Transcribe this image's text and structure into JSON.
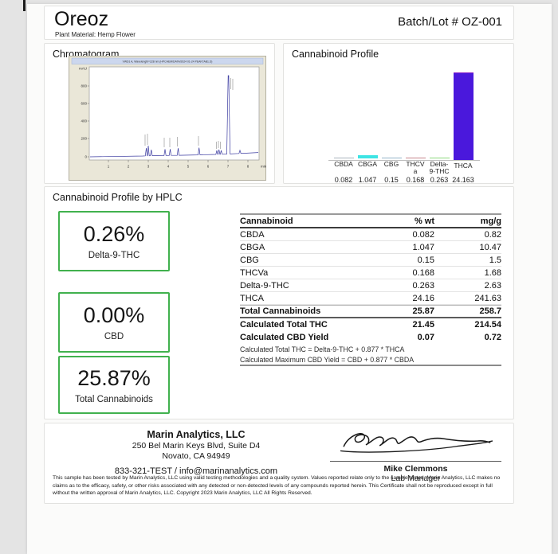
{
  "header": {
    "title": "Oreoz",
    "plant_material": "Plant Material: Hemp Flower",
    "batch": "Batch/Lot # OZ-001"
  },
  "chromatogram": {
    "title": "Chromatogram",
    "instrument_line": "VWD1 A, Wavelength=228 nm (HPCHEM/DATA/2024 01-24 PEAKTAB1.D)",
    "y_axis_label": "mAU",
    "y_ticks": [
      "800",
      "600",
      "400",
      "200",
      "0"
    ],
    "x_ticks": [
      "1",
      "2",
      "3",
      "4",
      "5",
      "6",
      "7",
      "8"
    ],
    "x_unit": "min"
  },
  "profile": {
    "title": "Cannabinoid Profile",
    "chart": {
      "ymax": 24.163,
      "items": [
        {
          "label_lines": [
            "CBDA"
          ],
          "value": 0.082,
          "value_label": "0.082",
          "color": "#aab4bd"
        },
        {
          "label_lines": [
            "CBGA"
          ],
          "value": 1.047,
          "value_label": "1.047",
          "color": "#3de4e4"
        },
        {
          "label_lines": [
            "CBG"
          ],
          "value": 0.15,
          "value_label": "0.15",
          "color": "#93b3c8"
        },
        {
          "label_lines": [
            "THCV",
            "a"
          ],
          "value": 0.168,
          "value_label": "0.168",
          "color": "#c5858c"
        },
        {
          "label_lines": [
            "Delta-",
            "9-THC"
          ],
          "value": 0.263,
          "value_label": "0.263",
          "color": "#8bd97c"
        },
        {
          "label_lines": [
            "THCA"
          ],
          "value": 24.163,
          "value_label": "24.163",
          "color": "#4a18dc",
          "edge": "#8a22c8"
        }
      ]
    }
  },
  "hplc": {
    "title": "Cannabinoid Profile by HPLC",
    "boxes": [
      {
        "value": "0.26%",
        "label": "Delta-9-THC"
      },
      {
        "value": "0.00%",
        "label": "CBD"
      },
      {
        "value": "25.87%",
        "label": "Total Cannabinoids"
      }
    ],
    "table": {
      "headers": [
        "Cannabinoid",
        "% wt",
        "mg/g"
      ],
      "rows": [
        [
          "CBDA",
          "0.082",
          "0.82"
        ],
        [
          "CBGA",
          "1.047",
          "10.47"
        ],
        [
          "CBG",
          "0.15",
          "1.5"
        ],
        [
          "THCVa",
          "0.168",
          "1.68"
        ],
        [
          "Delta-9-THC",
          "0.263",
          "2.63"
        ],
        [
          "THCA",
          "24.16",
          "241.63"
        ]
      ],
      "total_row": [
        "Total Cannabinoids",
        "25.87",
        "258.7"
      ],
      "calc_rows": [
        [
          "Calculated Total THC",
          "21.45",
          "214.54"
        ],
        [
          "Calculated CBD Yield",
          "0.07",
          "0.72"
        ]
      ],
      "notes": [
        "Calculated Total THC = Delta-9-THC + 0.877 * THCA",
        "Calculated Maximum CBD Yield = CBD + 0.877 * CBDA"
      ]
    }
  },
  "footer": {
    "lab_name": "Marin Analytics, LLC",
    "address_line1": "250 Bel Marin Keys Blvd, Suite D4",
    "address_line2": "Novato, CA 94949",
    "contact": "833-321-TEST / info@marinanalytics.com",
    "signer_name": "Mike Clemmons",
    "signer_title": "Lab Manager",
    "disclaimer": "This sample has been tested by Marin Analytics, LLC using valid testing methodologies and a quality system.  Values reported relate only to the sample tested.  Marin Analytics, LLC makes no claims as to the efficacy, safety, or other risks associated with any detected or non-detected levels of any compounds reported herein.  This Certificate shall not be reproduced except in full without the written approval of Marin Analytics, LLC.        Copyright 2023 Marin Analytics, LLC All Rights Reserved."
  },
  "chart_data": [
    {
      "type": "bar",
      "title": "Cannabinoid Profile",
      "categories": [
        "CBDA",
        "CBGA",
        "CBG",
        "THCVa",
        "Delta-9-THC",
        "THCA"
      ],
      "values": [
        0.082,
        1.047,
        0.15,
        0.168,
        0.263,
        24.163
      ],
      "xlabel": "",
      "ylabel": "",
      "ylim": [
        0,
        24.163
      ],
      "grid": false,
      "legend": "none",
      "bar_colors": [
        "#aab4bd",
        "#3de4e4",
        "#93b3c8",
        "#c5858c",
        "#8bd97c",
        "#4a18dc"
      ]
    },
    {
      "type": "line",
      "title": "Chromatogram",
      "xlabel": "min",
      "ylabel": "mAU",
      "xlim": [
        0.5,
        8.5
      ],
      "ylim": [
        0,
        900
      ],
      "x_ticks": [
        1,
        2,
        3,
        4,
        5,
        6,
        7,
        8
      ],
      "y_ticks": [
        0,
        200,
        400,
        600,
        800
      ],
      "peaks": [
        {
          "rt": 2.9,
          "mAU": 25
        },
        {
          "rt": 3.0,
          "mAU": 33
        },
        {
          "rt": 3.15,
          "mAU": 20
        },
        {
          "rt": 3.85,
          "mAU": 22
        },
        {
          "rt": 4.1,
          "mAU": 22
        },
        {
          "rt": 4.5,
          "mAU": 26
        },
        {
          "rt": 5.55,
          "mAU": 25
        },
        {
          "rt": 6.45,
          "mAU": 14
        },
        {
          "rt": 6.55,
          "mAU": 17
        },
        {
          "rt": 6.65,
          "mAU": 14
        },
        {
          "rt": 7.05,
          "mAU": 800
        },
        {
          "rt": 7.6,
          "mAU": 10
        }
      ]
    }
  ]
}
